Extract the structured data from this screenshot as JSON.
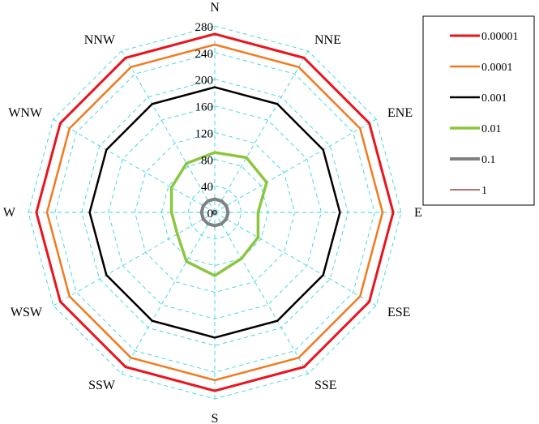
{
  "chart_data": {
    "type": "radar",
    "directions": [
      "N",
      "NNE",
      "ENE",
      "E",
      "ESE",
      "SSE",
      "S",
      "SSW",
      "WSW",
      "W",
      "WNW",
      "NNW"
    ],
    "radial_axis": {
      "min": 0,
      "max": 280,
      "ticks": [
        0,
        40,
        80,
        120,
        160,
        200,
        240,
        280
      ],
      "tick_labels": [
        "0",
        "40",
        "80",
        "120",
        "160",
        "200",
        "240",
        "280"
      ]
    },
    "grid": true,
    "grid_color": "#33d6e0",
    "legend_position": "top-right",
    "series": [
      {
        "name": "0.00001",
        "color": "#e8141e",
        "values": [
          268,
          268,
          268,
          268,
          268,
          268,
          268,
          268,
          268,
          268,
          268,
          268
        ]
      },
      {
        "name": "0.0001",
        "color": "#f07a20",
        "values": [
          252,
          252,
          252,
          252,
          252,
          252,
          252,
          252,
          252,
          252,
          252,
          252
        ]
      },
      {
        "name": "0.001",
        "color": "#000000",
        "values": [
          188,
          188,
          188,
          188,
          188,
          188,
          188,
          188,
          188,
          188,
          188,
          188
        ]
      },
      {
        "name": "0.01",
        "color": "#8cc63f",
        "values": [
          90,
          95,
          90,
          65,
          75,
          80,
          95,
          85,
          65,
          65,
          75,
          85
        ]
      },
      {
        "name": "0.1",
        "color": "#808080",
        "values": [
          20,
          20,
          20,
          20,
          20,
          20,
          20,
          20,
          20,
          20,
          20,
          20
        ]
      },
      {
        "name": "1",
        "color": "#8b1a1a",
        "values": [
          3,
          3,
          3,
          3,
          3,
          3,
          3,
          3,
          3,
          3,
          3,
          3
        ]
      }
    ]
  }
}
